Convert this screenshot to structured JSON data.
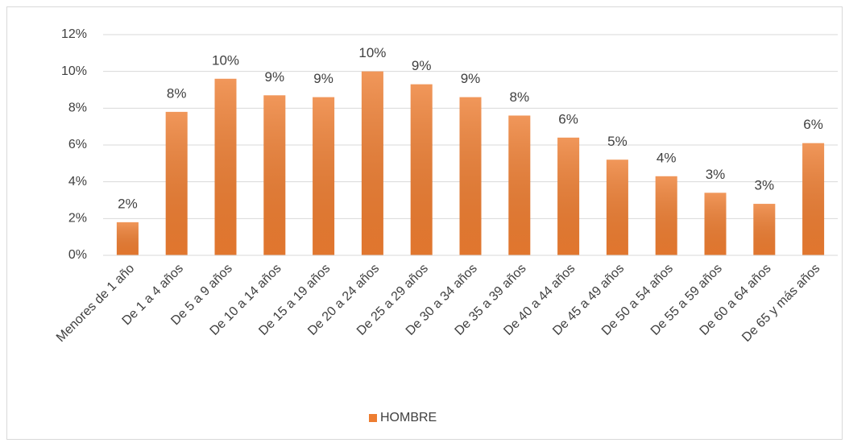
{
  "chart_data": {
    "type": "bar",
    "categories": [
      "Menores de 1 año",
      "De 1 a 4 años",
      "De 5 a 9 años",
      "De 10 a 14 años",
      "De 15 a 19 años",
      "De 20 a 24 años",
      "De 25 a 29 años",
      "De 30 a 34 años",
      "De 35 a 39 años",
      "De 40 a 44 años",
      "De 45 a 49 años",
      "De 50 a 54 años",
      "De 55 a 59 años",
      "De 60 a 64 años",
      "De 65 y más años"
    ],
    "series": [
      {
        "name": "HOMBRE",
        "color": "#ed7d31",
        "values": [
          1.8,
          7.8,
          9.6,
          8.7,
          8.6,
          10.0,
          9.3,
          8.6,
          7.6,
          6.4,
          5.2,
          4.3,
          3.4,
          2.8,
          6.1
        ],
        "value_labels": [
          "2%",
          "8%",
          "10%",
          "9%",
          "9%",
          "10%",
          "9%",
          "9%",
          "8%",
          "6%",
          "5%",
          "4%",
          "3%",
          "3%",
          "6%"
        ]
      }
    ],
    "ylim": [
      0,
      12
    ],
    "yticks": [
      {
        "value": 0,
        "label": "0%"
      },
      {
        "value": 2,
        "label": "2%"
      },
      {
        "value": 4,
        "label": "4%"
      },
      {
        "value": 6,
        "label": "6%"
      },
      {
        "value": 8,
        "label": "8%"
      },
      {
        "value": 10,
        "label": "10%"
      },
      {
        "value": 12,
        "label": "12%"
      }
    ],
    "grid": true,
    "legend": "bottom"
  }
}
